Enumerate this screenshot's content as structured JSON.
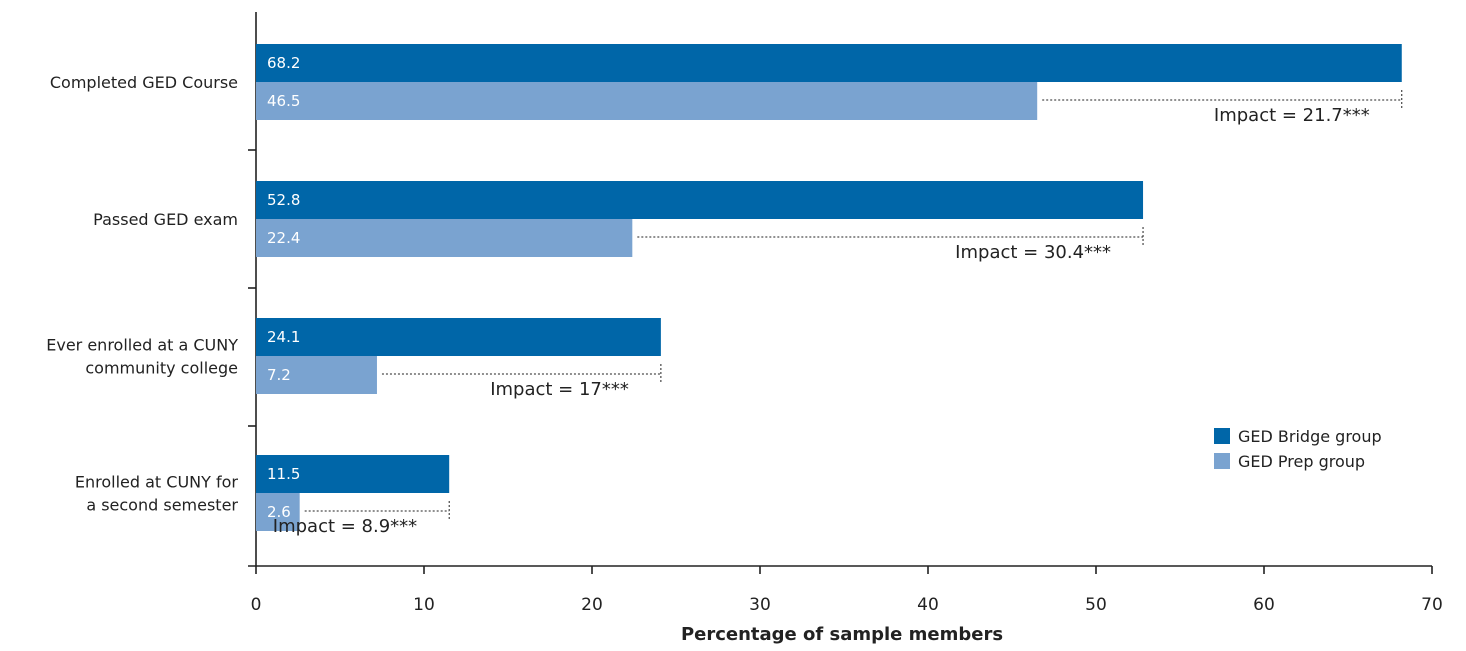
{
  "chart_data": {
    "type": "bar",
    "orientation": "horizontal",
    "categories": [
      [
        "Completed GED Course"
      ],
      [
        "Passed GED exam"
      ],
      [
        "Ever enrolled at a CUNY",
        "community college"
      ],
      [
        "Enrolled at CUNY for",
        "a second semester"
      ]
    ],
    "series": [
      {
        "name": "GED Bridge group",
        "color": "#0066a8",
        "values": [
          68.2,
          52.8,
          24.1,
          11.5
        ]
      },
      {
        "name": "GED Prep group",
        "color": "#7aa3d0",
        "values": [
          46.5,
          22.4,
          7.2,
          2.6
        ]
      }
    ],
    "data_labels": [
      [
        "68.2",
        "52.8",
        "24.1",
        "11.5"
      ],
      [
        "46.5",
        "22.4",
        "7.2",
        "2.6"
      ]
    ],
    "impacts": [
      "Impact = 21.7***",
      "Impact = 30.4***",
      "Impact = 17***",
      "Impact = 8.9***"
    ],
    "x_ticks": [
      "0",
      "10",
      "20",
      "30",
      "40",
      "50",
      "60",
      "70"
    ],
    "xlim": [
      0,
      70
    ],
    "xlabel": "Percentage of sample members",
    "legend_position": "bottom-right",
    "grid": false
  }
}
